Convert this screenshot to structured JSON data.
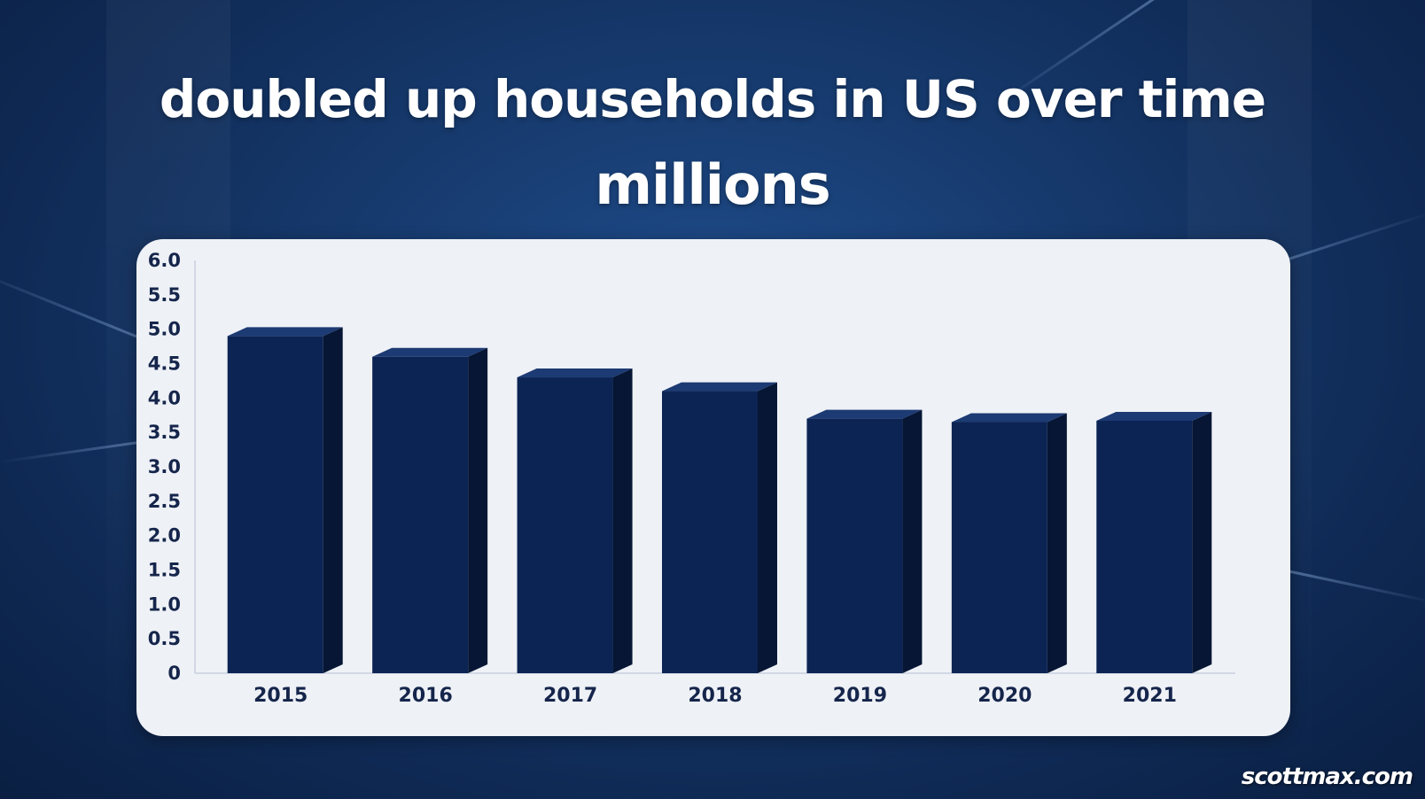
{
  "title": "doubled up households in US over time",
  "subtitle": "millions",
  "watermark": "scottmax.com",
  "colors": {
    "bar_front": "#0b2454",
    "bar_side": "#061634",
    "bar_top": "#1c3a73",
    "panel": "#eef1f6",
    "text": "#15254b"
  },
  "chart_data": {
    "type": "bar",
    "categories": [
      "2015",
      "2016",
      "2017",
      "2018",
      "2019",
      "2020",
      "2021"
    ],
    "values": [
      4.9,
      4.6,
      4.3,
      4.1,
      3.7,
      3.65,
      3.67
    ],
    "ylim": [
      0,
      6
    ],
    "yticks": [
      "0",
      "0.5",
      "1.0",
      "1.5",
      "2.0",
      "2.5",
      "3.0",
      "3.5",
      "4.0",
      "4.5",
      "5.0",
      "5.5",
      "6.0"
    ],
    "xlabel": "",
    "ylabel": "",
    "grid": false,
    "legend": "none"
  }
}
